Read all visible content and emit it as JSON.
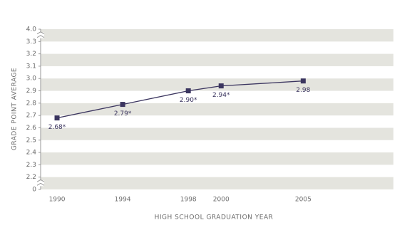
{
  "chart_data": {
    "type": "line",
    "x_label": "HIGH SCHOOL GRADUATION YEAR",
    "y_label": "GRADE POINT AVERAGE",
    "x": [
      1990,
      1994,
      1998,
      2000,
      2005
    ],
    "values": [
      2.68,
      2.79,
      2.9,
      2.94,
      2.98
    ],
    "value_labels": [
      "2.68*",
      "2.79*",
      "2.90*",
      "2.94*",
      "2.98"
    ],
    "color": "#3b355f",
    "xlim": [
      1989,
      2010.5
    ],
    "xticks": [
      1990,
      1994,
      1998,
      2000,
      2005
    ],
    "ylim": [
      0,
      4.0
    ],
    "yticks": [
      0,
      2.2,
      2.3,
      2.4,
      2.5,
      2.6,
      2.7,
      2.8,
      2.9,
      {
        "value": 3.0,
        "label": "3.0"
      },
      3.1,
      3.2,
      3.3,
      {
        "value": 4.0,
        "label": "4.0"
      }
    ],
    "y_axis_breaks": [
      [
        0,
        2.2
      ],
      [
        3.3,
        4.0
      ]
    ],
    "band_color": "#e4e4de"
  }
}
